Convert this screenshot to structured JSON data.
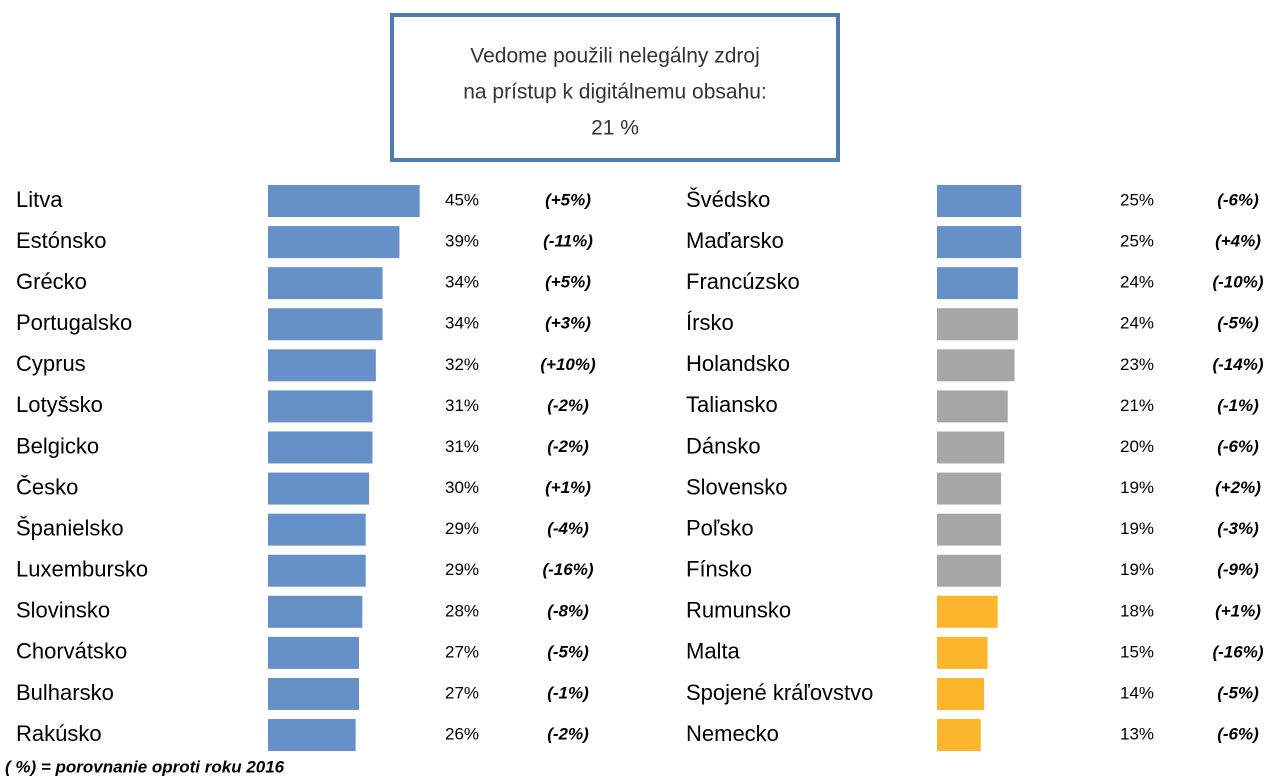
{
  "box": {
    "lines": [
      "Vedome použili nelegálny zdroj",
      "na prístup k digitálnemu obsahu:",
      "21 %"
    ]
  },
  "footnote": "( %) = porovnanie oproti roku 2016",
  "chart_data": [
    {
      "type": "bar",
      "orientation": "horizontal",
      "categories": [
        "Litva",
        "Estónsko",
        "Grécko",
        "Portugalsko",
        "Cyprus",
        "Lotyšsko",
        "Belgicko",
        "Česko",
        "Španielsko",
        "Luxembursko",
        "Slovinsko",
        "Chorvátsko",
        "Bulharsko",
        "Rakúsko"
      ],
      "values": [
        45,
        39,
        34,
        34,
        32,
        31,
        31,
        30,
        29,
        29,
        28,
        27,
        27,
        26
      ],
      "value_labels": [
        "45%",
        "39%",
        "34%",
        "34%",
        "32%",
        "31%",
        "31%",
        "30%",
        "29%",
        "29%",
        "28%",
        "27%",
        "27%",
        "26%"
      ],
      "changes": [
        "(+5%)",
        "(-11%)",
        "(+5%)",
        "(+3%)",
        "(+10%)",
        "(-2%)",
        "(-2%)",
        "(+1%)",
        "(-4%)",
        "(-16%)",
        "(-8%)",
        "(-5%)",
        "(-1%)",
        "(-2%)"
      ],
      "colors": [
        "#6590c8",
        "#6590c8",
        "#6590c8",
        "#6590c8",
        "#6590c8",
        "#6590c8",
        "#6590c8",
        "#6590c8",
        "#6590c8",
        "#6590c8",
        "#6590c8",
        "#6590c8",
        "#6590c8",
        "#6590c8"
      ]
    },
    {
      "type": "bar",
      "orientation": "horizontal",
      "categories": [
        "Švédsko",
        "Maďarsko",
        "Francúzsko",
        "Írsko",
        "Holandsko",
        "Taliansko",
        "Dánsko",
        "Slovensko",
        "Poľsko",
        "Fínsko",
        "Rumunsko",
        "Malta",
        "Spojené kráľovstvo",
        "Nemecko"
      ],
      "values": [
        25,
        25,
        24,
        24,
        23,
        21,
        20,
        19,
        19,
        19,
        18,
        15,
        14,
        13
      ],
      "value_labels": [
        "25%",
        "25%",
        "24%",
        "24%",
        "23%",
        "21%",
        "20%",
        "19%",
        "19%",
        "19%",
        "18%",
        "15%",
        "14%",
        "13%"
      ],
      "changes": [
        "(-6%)",
        "(+4%)",
        "(-10%)",
        "(-5%)",
        "(-14%)",
        "(-1%)",
        "(-6%)",
        "(+2%)",
        "(-3%)",
        "(-9%)",
        "(+1%)",
        "(-16%)",
        "(-5%)",
        "(-6%)"
      ],
      "colors": [
        "#6590c8",
        "#6590c8",
        "#6590c8",
        "#a6a6a6",
        "#a6a6a6",
        "#a6a6a6",
        "#a6a6a6",
        "#a6a6a6",
        "#a6a6a6",
        "#a6a6a6",
        "#fbb62b",
        "#fbb62b",
        "#fbb62b",
        "#fbb62b"
      ]
    }
  ]
}
